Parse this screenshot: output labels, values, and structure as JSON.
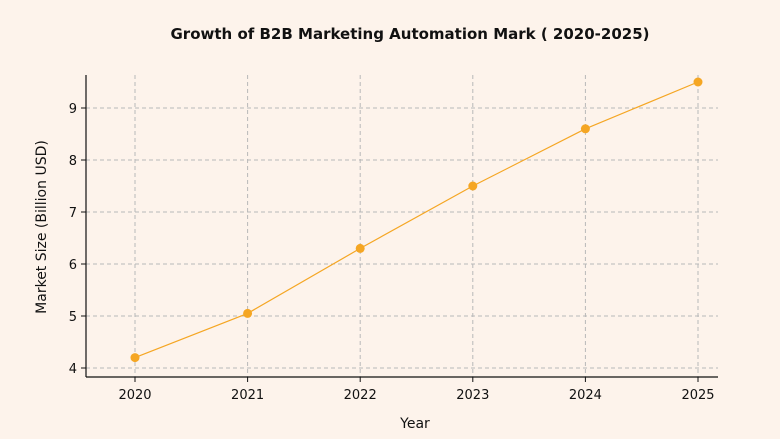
{
  "chart_data": {
    "type": "line",
    "title": "Growth of B2B Marketing  Automation Mark ( 2020-2025)",
    "xlabel": "Year",
    "ylabel": "Market Size (Billion USD)",
    "categories": [
      "2020",
      "2021",
      "2022",
      "2023",
      "2024",
      "2025"
    ],
    "series": [
      {
        "values": [
          4.2,
          5.05,
          6.3,
          7.5,
          8.6,
          9.5
        ]
      }
    ],
    "yticks": [
      4,
      5,
      6,
      7,
      8,
      9
    ],
    "ylim": [
      3.95,
      9.75
    ],
    "grid": true,
    "line_color": "#f5a623",
    "marker": "circle"
  }
}
